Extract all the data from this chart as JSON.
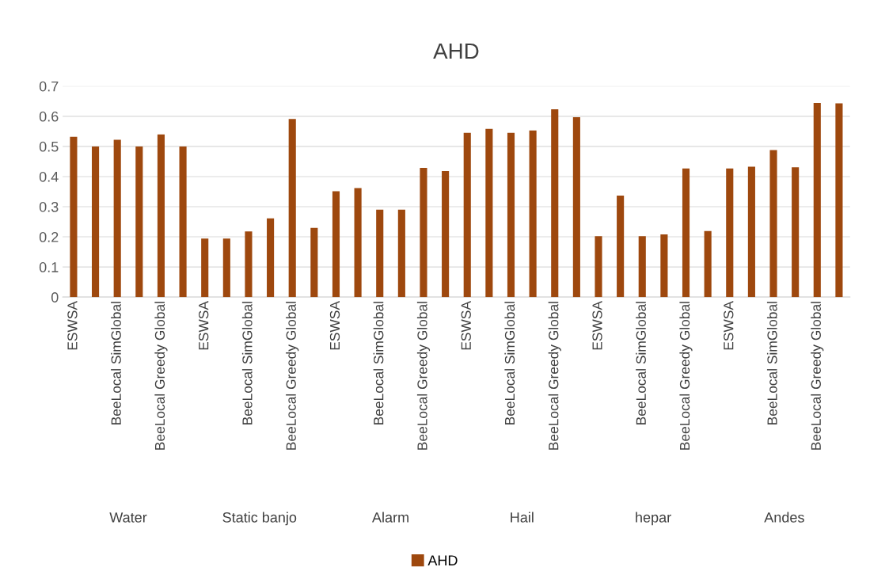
{
  "chart_data": {
    "type": "bar",
    "title": "AHD",
    "categories": [
      "ESWSA",
      null,
      "BeeLocal SimGlobal",
      null,
      "BeeLocal Greedy Global",
      null,
      "ESWSA",
      null,
      "BeeLocal SimGlobal",
      null,
      "BeeLocal Greedy Global",
      null,
      "ESWSA",
      null,
      "BeeLocal SimGlobal",
      null,
      "BeeLocal Greedy Global",
      null,
      "ESWSA",
      null,
      "BeeLocal SimGlobal",
      null,
      "BeeLocal Greedy Global",
      null,
      "ESWSA",
      null,
      "BeeLocal SimGlobal",
      null,
      "BeeLocal Greedy Global",
      null,
      "ESWSA",
      null,
      "BeeLocal SimGlobal",
      null,
      "BeeLocal Greedy Global",
      null
    ],
    "series": [
      {
        "name": "AHD",
        "color": "#9e480e",
        "values": [
          0.532,
          0.5,
          0.522,
          0.5,
          0.54,
          0.5,
          0.194,
          0.194,
          0.218,
          0.261,
          0.591,
          0.23,
          0.351,
          0.362,
          0.29,
          0.29,
          0.429,
          0.418,
          0.545,
          0.558,
          0.545,
          0.553,
          0.623,
          0.597,
          0.202,
          0.337,
          0.202,
          0.208,
          0.427,
          0.219,
          0.427,
          0.433,
          0.488,
          0.431,
          0.644,
          0.643
        ]
      }
    ],
    "annotations": [
      "Water",
      "Static banjo",
      "Alarm",
      "Hail",
      "hepar",
      "Andes"
    ],
    "ylim": [
      0,
      0.7
    ],
    "yticks": [
      0,
      0.1,
      0.2,
      0.3,
      0.4,
      0.5,
      0.6,
      0.7
    ],
    "grid": "y",
    "legend": "bottom"
  }
}
